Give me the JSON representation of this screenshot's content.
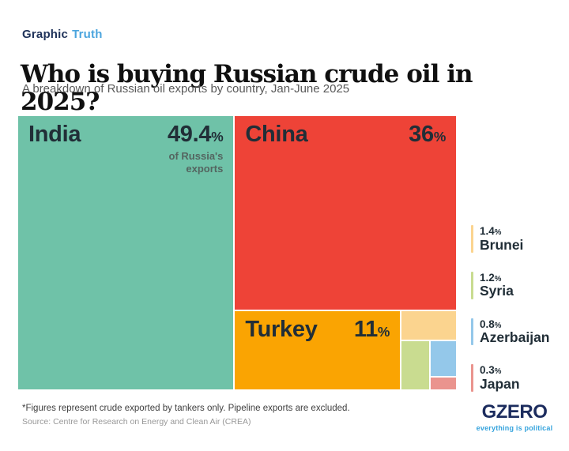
{
  "kicker": {
    "part1": "Graphic",
    "part2": "Truth"
  },
  "title": "Who is buying Russian crude oil in 2025?",
  "subtitle": "A breakdown of Russian oil exports by country, Jan-June 2025",
  "chart_data": {
    "type": "treemap",
    "title": "Who is buying Russian crude oil in 2025?",
    "unit": "%",
    "legend_position": "right",
    "series": [
      {
        "name": "India",
        "value": 49.4,
        "color": "#6fc2a8",
        "label_inside": true,
        "sub_label": "of Russia's exports"
      },
      {
        "name": "China",
        "value": 36,
        "color": "#ee4337",
        "label_inside": true
      },
      {
        "name": "Turkey",
        "value": 11,
        "color": "#faa402",
        "label_inside": true
      },
      {
        "name": "Brunei",
        "value": 1.4,
        "color": "#fbd48f",
        "label_inside": false
      },
      {
        "name": "Syria",
        "value": 1.2,
        "color": "#c9dc90",
        "label_inside": false
      },
      {
        "name": "Azerbaijan",
        "value": 0.8,
        "color": "#94c8ea",
        "label_inside": false
      },
      {
        "name": "Japan",
        "value": 0.3,
        "color": "#ea948e",
        "label_inside": false
      }
    ]
  },
  "footnote": "*Figures represent crude exported by tankers only. Pipeline exports are excluded.",
  "source": "Source: Centre for Research on Energy and Clean Air (CREA)",
  "logo": {
    "text": "GZERO",
    "tagline": "everything is political"
  }
}
